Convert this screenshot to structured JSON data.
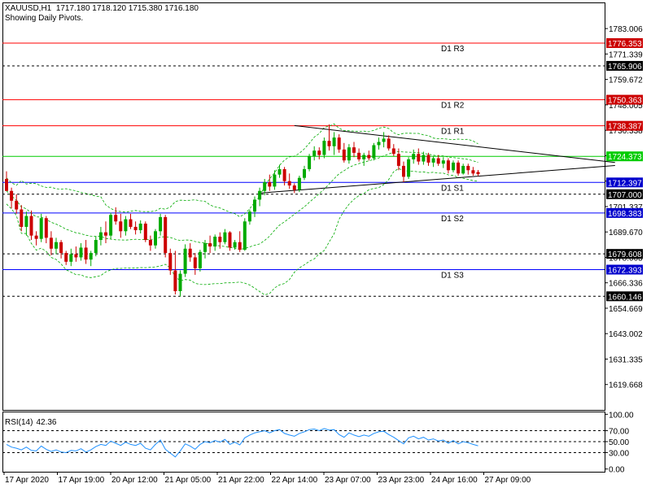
{
  "header": {
    "symbol": "XAUUSD,H1",
    "ohlc": "1717.180 1718.120 1715.380 1716.180",
    "subtitle": "Showing Daily Pivots."
  },
  "colors": {
    "frame": "#000000",
    "bull": "#00aa00",
    "bear": "#cc0000",
    "bands": "#00aa00",
    "resistance": "#ff0000",
    "support": "#0000ff",
    "dotted": "#000000",
    "green_line": "#00cc00",
    "rsi": "#1e90ff",
    "red_label_bg": "#cc0000",
    "blue_label_bg": "#0000cc"
  },
  "chart_data": [
    {
      "type": "candlestick",
      "ylim": [
        1608.0,
        1795.0
      ],
      "y_ticks": [
        1783.006,
        1771.339,
        1759.672,
        1748.005,
        1736.338,
        1724.671,
        1713.004,
        1701.337,
        1689.67,
        1678.003,
        1666.336,
        1654.669,
        1643.002,
        1631.335,
        1619.668
      ],
      "x_labels": [
        "17 Apr 2020",
        "17 Apr 19:00",
        "20 Apr 12:00",
        "21 Apr 05:00",
        "21 Apr 22:00",
        "22 Apr 14:00",
        "23 Apr 07:00",
        "23 Apr 23:00",
        "24 Apr 16:00",
        "27 Apr 09:00"
      ],
      "pivots": [
        {
          "name": "D1 R3",
          "value": 1776.353,
          "kind": "resistance"
        },
        {
          "name": "D1 R2",
          "value": 1750.363,
          "kind": "resistance"
        },
        {
          "name": "D1 R1",
          "value": 1738.387,
          "kind": "resistance"
        },
        {
          "name": "D1 S1",
          "value": 1712.397,
          "kind": "support"
        },
        {
          "name": "D1 S2",
          "value": 1698.383,
          "kind": "support"
        },
        {
          "name": "D1 S3",
          "value": 1672.393,
          "kind": "support"
        }
      ],
      "level_lines": [
        {
          "value": 1765.906,
          "style": "dotted"
        },
        {
          "value": 1724.373,
          "style": "green"
        },
        {
          "value": 1707.0,
          "style": "dotted"
        },
        {
          "value": 1679.608,
          "style": "dotted"
        },
        {
          "value": 1660.146,
          "style": "dotted"
        }
      ],
      "trendlines": [
        {
          "from": [
            58,
            1738.5
          ],
          "to": [
            98,
            1728.0
          ]
        },
        {
          "from": [
            51,
            1707.5
          ],
          "to": [
            98,
            1715.8
          ]
        }
      ],
      "candles": [
        [
          1714.0,
          1717.5,
          1708.5,
          1708.5
        ],
        [
          1708.5,
          1710.0,
          1700.5,
          1704.0
        ],
        [
          1704.0,
          1707.0,
          1698.0,
          1700.0
        ],
        [
          1700.0,
          1702.0,
          1690.0,
          1692.0
        ],
        [
          1692.0,
          1699.0,
          1688.0,
          1697.0
        ],
        [
          1697.0,
          1699.5,
          1686.0,
          1688.0
        ],
        [
          1688.0,
          1690.0,
          1683.5,
          1686.5
        ],
        [
          1686.5,
          1698.0,
          1685.0,
          1696.0
        ],
        [
          1696.0,
          1697.0,
          1684.5,
          1687.0
        ],
        [
          1687.0,
          1690.0,
          1679.0,
          1682.0
        ],
        [
          1682.0,
          1687.0,
          1679.5,
          1685.0
        ],
        [
          1685.0,
          1686.0,
          1677.5,
          1680.0
        ],
        [
          1680.0,
          1681.0,
          1674.5,
          1676.0
        ],
        [
          1676.0,
          1682.0,
          1674.0,
          1679.5
        ],
        [
          1679.5,
          1683.0,
          1676.0,
          1678.0
        ],
        [
          1678.0,
          1684.5,
          1676.5,
          1682.5
        ],
        [
          1682.5,
          1686.0,
          1675.0,
          1677.0
        ],
        [
          1677.0,
          1681.0,
          1674.0,
          1680.0
        ],
        [
          1680.0,
          1687.5,
          1678.5,
          1686.0
        ],
        [
          1686.0,
          1692.0,
          1683.5,
          1689.5
        ],
        [
          1689.5,
          1694.5,
          1684.5,
          1688.0
        ],
        [
          1688.0,
          1698.5,
          1686.5,
          1697.5
        ],
        [
          1697.5,
          1701.0,
          1693.0,
          1694.5
        ],
        [
          1694.5,
          1698.0,
          1687.0,
          1690.0
        ],
        [
          1690.0,
          1697.0,
          1688.0,
          1695.5
        ],
        [
          1695.5,
          1698.0,
          1691.0,
          1692.0
        ],
        [
          1692.0,
          1694.5,
          1688.5,
          1690.5
        ],
        [
          1690.5,
          1695.0,
          1689.0,
          1693.5
        ],
        [
          1693.5,
          1694.5,
          1685.0,
          1686.0
        ],
        [
          1686.0,
          1688.0,
          1681.0,
          1683.5
        ],
        [
          1683.5,
          1691.0,
          1682.0,
          1690.0
        ],
        [
          1690.0,
          1698.0,
          1688.0,
          1696.5
        ],
        [
          1696.5,
          1697.5,
          1678.0,
          1680.0
        ],
        [
          1680.0,
          1682.0,
          1670.0,
          1672.0
        ],
        [
          1672.0,
          1681.0,
          1661.0,
          1662.5
        ],
        [
          1662.5,
          1672.0,
          1660.0,
          1670.5
        ],
        [
          1670.5,
          1684.0,
          1669.0,
          1682.0
        ],
        [
          1682.0,
          1684.5,
          1676.0,
          1678.0
        ],
        [
          1678.0,
          1680.0,
          1670.0,
          1673.0
        ],
        [
          1673.0,
          1681.5,
          1671.5,
          1680.5
        ],
        [
          1680.5,
          1686.0,
          1677.5,
          1684.5
        ],
        [
          1684.5,
          1688.0,
          1680.0,
          1683.0
        ],
        [
          1683.0,
          1688.5,
          1681.0,
          1687.5
        ],
        [
          1687.5,
          1689.5,
          1682.0,
          1685.0
        ],
        [
          1685.0,
          1691.0,
          1684.0,
          1689.5
        ],
        [
          1689.5,
          1690.0,
          1681.0,
          1682.5
        ],
        [
          1682.5,
          1686.0,
          1681.5,
          1685.0
        ],
        [
          1685.0,
          1690.0,
          1680.5,
          1681.5
        ],
        [
          1681.5,
          1696.0,
          1681.0,
          1694.5
        ],
        [
          1694.5,
          1700.0,
          1693.0,
          1699.0
        ],
        [
          1699.0,
          1706.0,
          1696.5,
          1704.5
        ],
        [
          1704.5,
          1710.0,
          1701.5,
          1708.5
        ],
        [
          1708.5,
          1714.0,
          1706.5,
          1712.5
        ],
        [
          1712.5,
          1716.0,
          1708.5,
          1710.5
        ],
        [
          1710.5,
          1718.0,
          1709.0,
          1716.0
        ],
        [
          1716.0,
          1720.5,
          1714.5,
          1718.5
        ],
        [
          1718.5,
          1719.5,
          1711.0,
          1713.0
        ],
        [
          1713.0,
          1716.5,
          1709.5,
          1711.0
        ],
        [
          1711.0,
          1712.0,
          1707.5,
          1709.0
        ],
        [
          1709.0,
          1715.5,
          1708.0,
          1714.5
        ],
        [
          1714.5,
          1720.0,
          1713.5,
          1718.5
        ],
        [
          1718.5,
          1725.5,
          1717.5,
          1724.5
        ],
        [
          1724.5,
          1729.0,
          1722.5,
          1727.0
        ],
        [
          1727.0,
          1728.5,
          1723.0,
          1725.0
        ],
        [
          1725.0,
          1733.0,
          1723.5,
          1731.5
        ],
        [
          1731.5,
          1739.0,
          1727.0,
          1729.0
        ],
        [
          1729.0,
          1735.5,
          1725.0,
          1733.0
        ],
        [
          1733.0,
          1734.5,
          1726.0,
          1727.5
        ],
        [
          1727.5,
          1730.5,
          1721.5,
          1722.5
        ],
        [
          1722.5,
          1730.0,
          1721.0,
          1728.5
        ],
        [
          1728.5,
          1731.0,
          1724.0,
          1726.0
        ],
        [
          1726.0,
          1728.0,
          1722.0,
          1723.0
        ],
        [
          1723.0,
          1726.0,
          1720.0,
          1725.0
        ],
        [
          1725.0,
          1727.0,
          1722.5,
          1723.5
        ],
        [
          1723.5,
          1730.5,
          1722.5,
          1729.5
        ],
        [
          1729.5,
          1733.0,
          1727.5,
          1731.0
        ],
        [
          1731.0,
          1735.5,
          1728.5,
          1732.5
        ],
        [
          1732.5,
          1734.0,
          1727.0,
          1728.0
        ],
        [
          1728.0,
          1730.0,
          1724.5,
          1725.5
        ],
        [
          1725.5,
          1728.0,
          1718.0,
          1720.0
        ],
        [
          1720.0,
          1722.0,
          1712.5,
          1715.0
        ],
        [
          1715.0,
          1724.0,
          1714.0,
          1723.0
        ],
        [
          1723.0,
          1727.5,
          1721.0,
          1725.5
        ],
        [
          1725.5,
          1728.0,
          1720.5,
          1722.0
        ],
        [
          1722.0,
          1726.5,
          1720.5,
          1725.0
        ],
        [
          1725.0,
          1726.0,
          1720.0,
          1721.5
        ],
        [
          1721.5,
          1724.5,
          1719.5,
          1723.5
        ],
        [
          1723.5,
          1725.0,
          1720.0,
          1721.0
        ],
        [
          1721.0,
          1724.0,
          1719.0,
          1722.5
        ],
        [
          1722.5,
          1723.5,
          1716.5,
          1718.0
        ],
        [
          1718.0,
          1722.5,
          1717.0,
          1721.5
        ],
        [
          1721.5,
          1722.5,
          1715.5,
          1716.5
        ],
        [
          1716.5,
          1721.0,
          1716.0,
          1720.0
        ],
        [
          1720.0,
          1721.0,
          1716.0,
          1718.0
        ],
        [
          1718.0,
          1719.5,
          1715.5,
          1716.5
        ],
        [
          1717.18,
          1718.12,
          1715.38,
          1716.18
        ]
      ]
    },
    {
      "type": "line",
      "name": "RSI(14)",
      "ylim": [
        -5,
        105
      ],
      "y_ticks": [
        100.0,
        70.0,
        50.0,
        30.0,
        0.0
      ],
      "levels": [
        70,
        50,
        30
      ],
      "values": [
        45,
        40,
        38,
        35,
        40,
        34,
        33,
        42,
        36,
        32,
        35,
        31,
        30,
        34,
        33,
        37,
        31,
        35,
        41,
        45,
        43,
        51,
        47,
        43,
        49,
        45,
        43,
        47,
        38,
        35,
        45,
        53,
        36,
        29,
        22,
        33,
        46,
        42,
        36,
        45,
        50,
        48,
        52,
        49,
        54,
        45,
        49,
        44,
        57,
        62,
        66,
        68,
        70,
        66,
        70,
        72,
        65,
        62,
        60,
        65,
        68,
        72,
        73,
        70,
        74,
        71,
        72,
        63,
        58,
        66,
        62,
        59,
        62,
        60,
        65,
        68,
        69,
        63,
        58,
        52,
        46,
        57,
        60,
        55,
        58,
        53,
        55,
        51,
        53,
        47,
        52,
        46,
        50,
        48,
        45,
        42.36
      ],
      "current": "42.36"
    }
  ]
}
